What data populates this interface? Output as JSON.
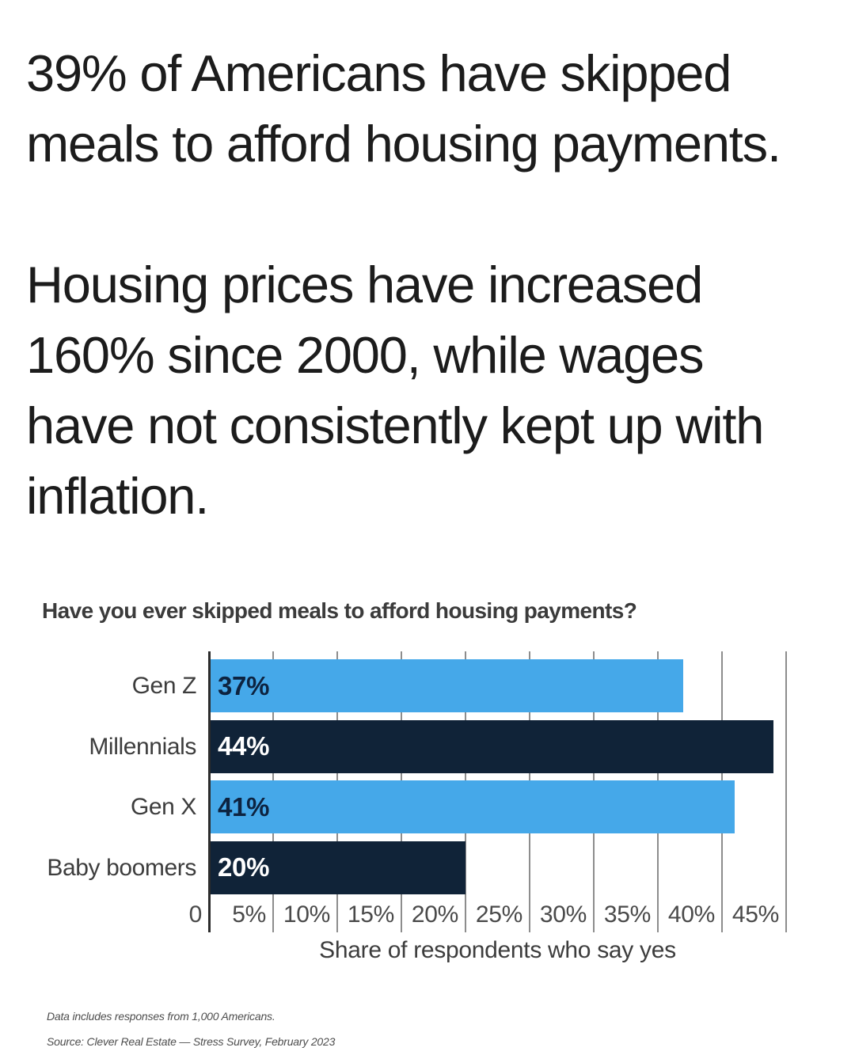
{
  "headline": {
    "text": "39% of Americans have skipped meals to afford housing payments.",
    "lines": [
      "39% of Americans have skipped",
      "meals to afford housing payments."
    ]
  },
  "subheadline": {
    "text": "Housing prices have increased 160% since 2000, while wages have not consistently kept up with inflation.",
    "lines": [
      "Housing prices have increased",
      "160% since 2000, while wages",
      "have not consistently kept up with",
      "inflation."
    ]
  },
  "chart_data": {
    "type": "bar",
    "orientation": "horizontal",
    "title": "Have you ever skipped meals to afford housing payments?",
    "categories": [
      "Gen Z",
      "Millennials",
      "Gen X",
      "Baby boomers"
    ],
    "values": [
      37,
      44,
      41,
      20
    ],
    "value_labels": [
      "37%",
      "44%",
      "41%",
      "20%"
    ],
    "xlabel": "Share of respondents who say yes",
    "xlim": [
      0,
      45
    ],
    "xticks": [
      {
        "value": 0,
        "label": "0"
      },
      {
        "value": 5,
        "label": "5%"
      },
      {
        "value": 10,
        "label": "10%"
      },
      {
        "value": 15,
        "label": "15%"
      },
      {
        "value": 20,
        "label": "20%"
      },
      {
        "value": 25,
        "label": "25%"
      },
      {
        "value": 30,
        "label": "30%"
      },
      {
        "value": 35,
        "label": "35%"
      },
      {
        "value": 40,
        "label": "40%"
      },
      {
        "value": 45,
        "label": "45%"
      }
    ],
    "grid": true,
    "legend": false,
    "bar_colors": [
      "#45a8e9",
      "#102338",
      "#45a8e9",
      "#102338"
    ],
    "value_label_colors": [
      "#0d2340",
      "#ffffff",
      "#0d2340",
      "#ffffff"
    ],
    "gridline_color": "#8d8d8d",
    "axis_line_color": "#2c2c2c"
  },
  "footnotes": [
    "Data includes responses from 1,000 Americans.",
    "Source: Clever Real Estate — Stress Survey, February 2023"
  ]
}
